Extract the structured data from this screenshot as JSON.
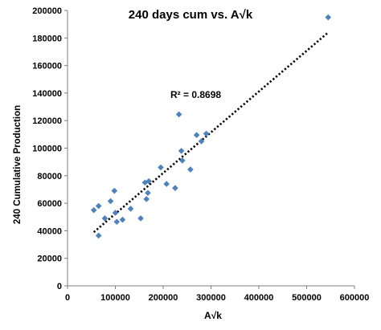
{
  "chart_data": {
    "type": "scatter",
    "title": "240 days cum vs. A√k",
    "xlabel": "A√k",
    "ylabel": "240 Cumulative Production",
    "annotation": "R² = 0.8698",
    "xlim": [
      0,
      600000
    ],
    "ylim": [
      0,
      200000
    ],
    "x_ticks": [
      "0",
      "100000",
      "200000",
      "300000",
      "400000",
      "500000",
      "600000"
    ],
    "y_ticks": [
      "0",
      "20000",
      "40000",
      "60000",
      "80000",
      "100000",
      "120000",
      "140000",
      "160000",
      "180000",
      "200000"
    ],
    "grid": false,
    "marker_color": "#4F81BD",
    "trendline": {
      "style": "dotted",
      "color": "#000000",
      "x": [
        55000,
        545000
      ],
      "y": [
        39000,
        184000
      ]
    },
    "points": [
      [
        55000,
        55000
      ],
      [
        65000,
        58000
      ],
      [
        65000,
        36500
      ],
      [
        78000,
        49000
      ],
      [
        90000,
        61500
      ],
      [
        98000,
        69000
      ],
      [
        100000,
        53000
      ],
      [
        103000,
        46500
      ],
      [
        115000,
        48000
      ],
      [
        132000,
        56000
      ],
      [
        153000,
        49000
      ],
      [
        162000,
        75000
      ],
      [
        165000,
        63000
      ],
      [
        168000,
        67500
      ],
      [
        170000,
        76000
      ],
      [
        195000,
        86000
      ],
      [
        207000,
        74000
      ],
      [
        225000,
        71000
      ],
      [
        233000,
        124500
      ],
      [
        238000,
        98000
      ],
      [
        240000,
        91000
      ],
      [
        257000,
        84500
      ],
      [
        270000,
        109500
      ],
      [
        280000,
        105000
      ],
      [
        290000,
        110500
      ],
      [
        545000,
        195000
      ]
    ]
  }
}
